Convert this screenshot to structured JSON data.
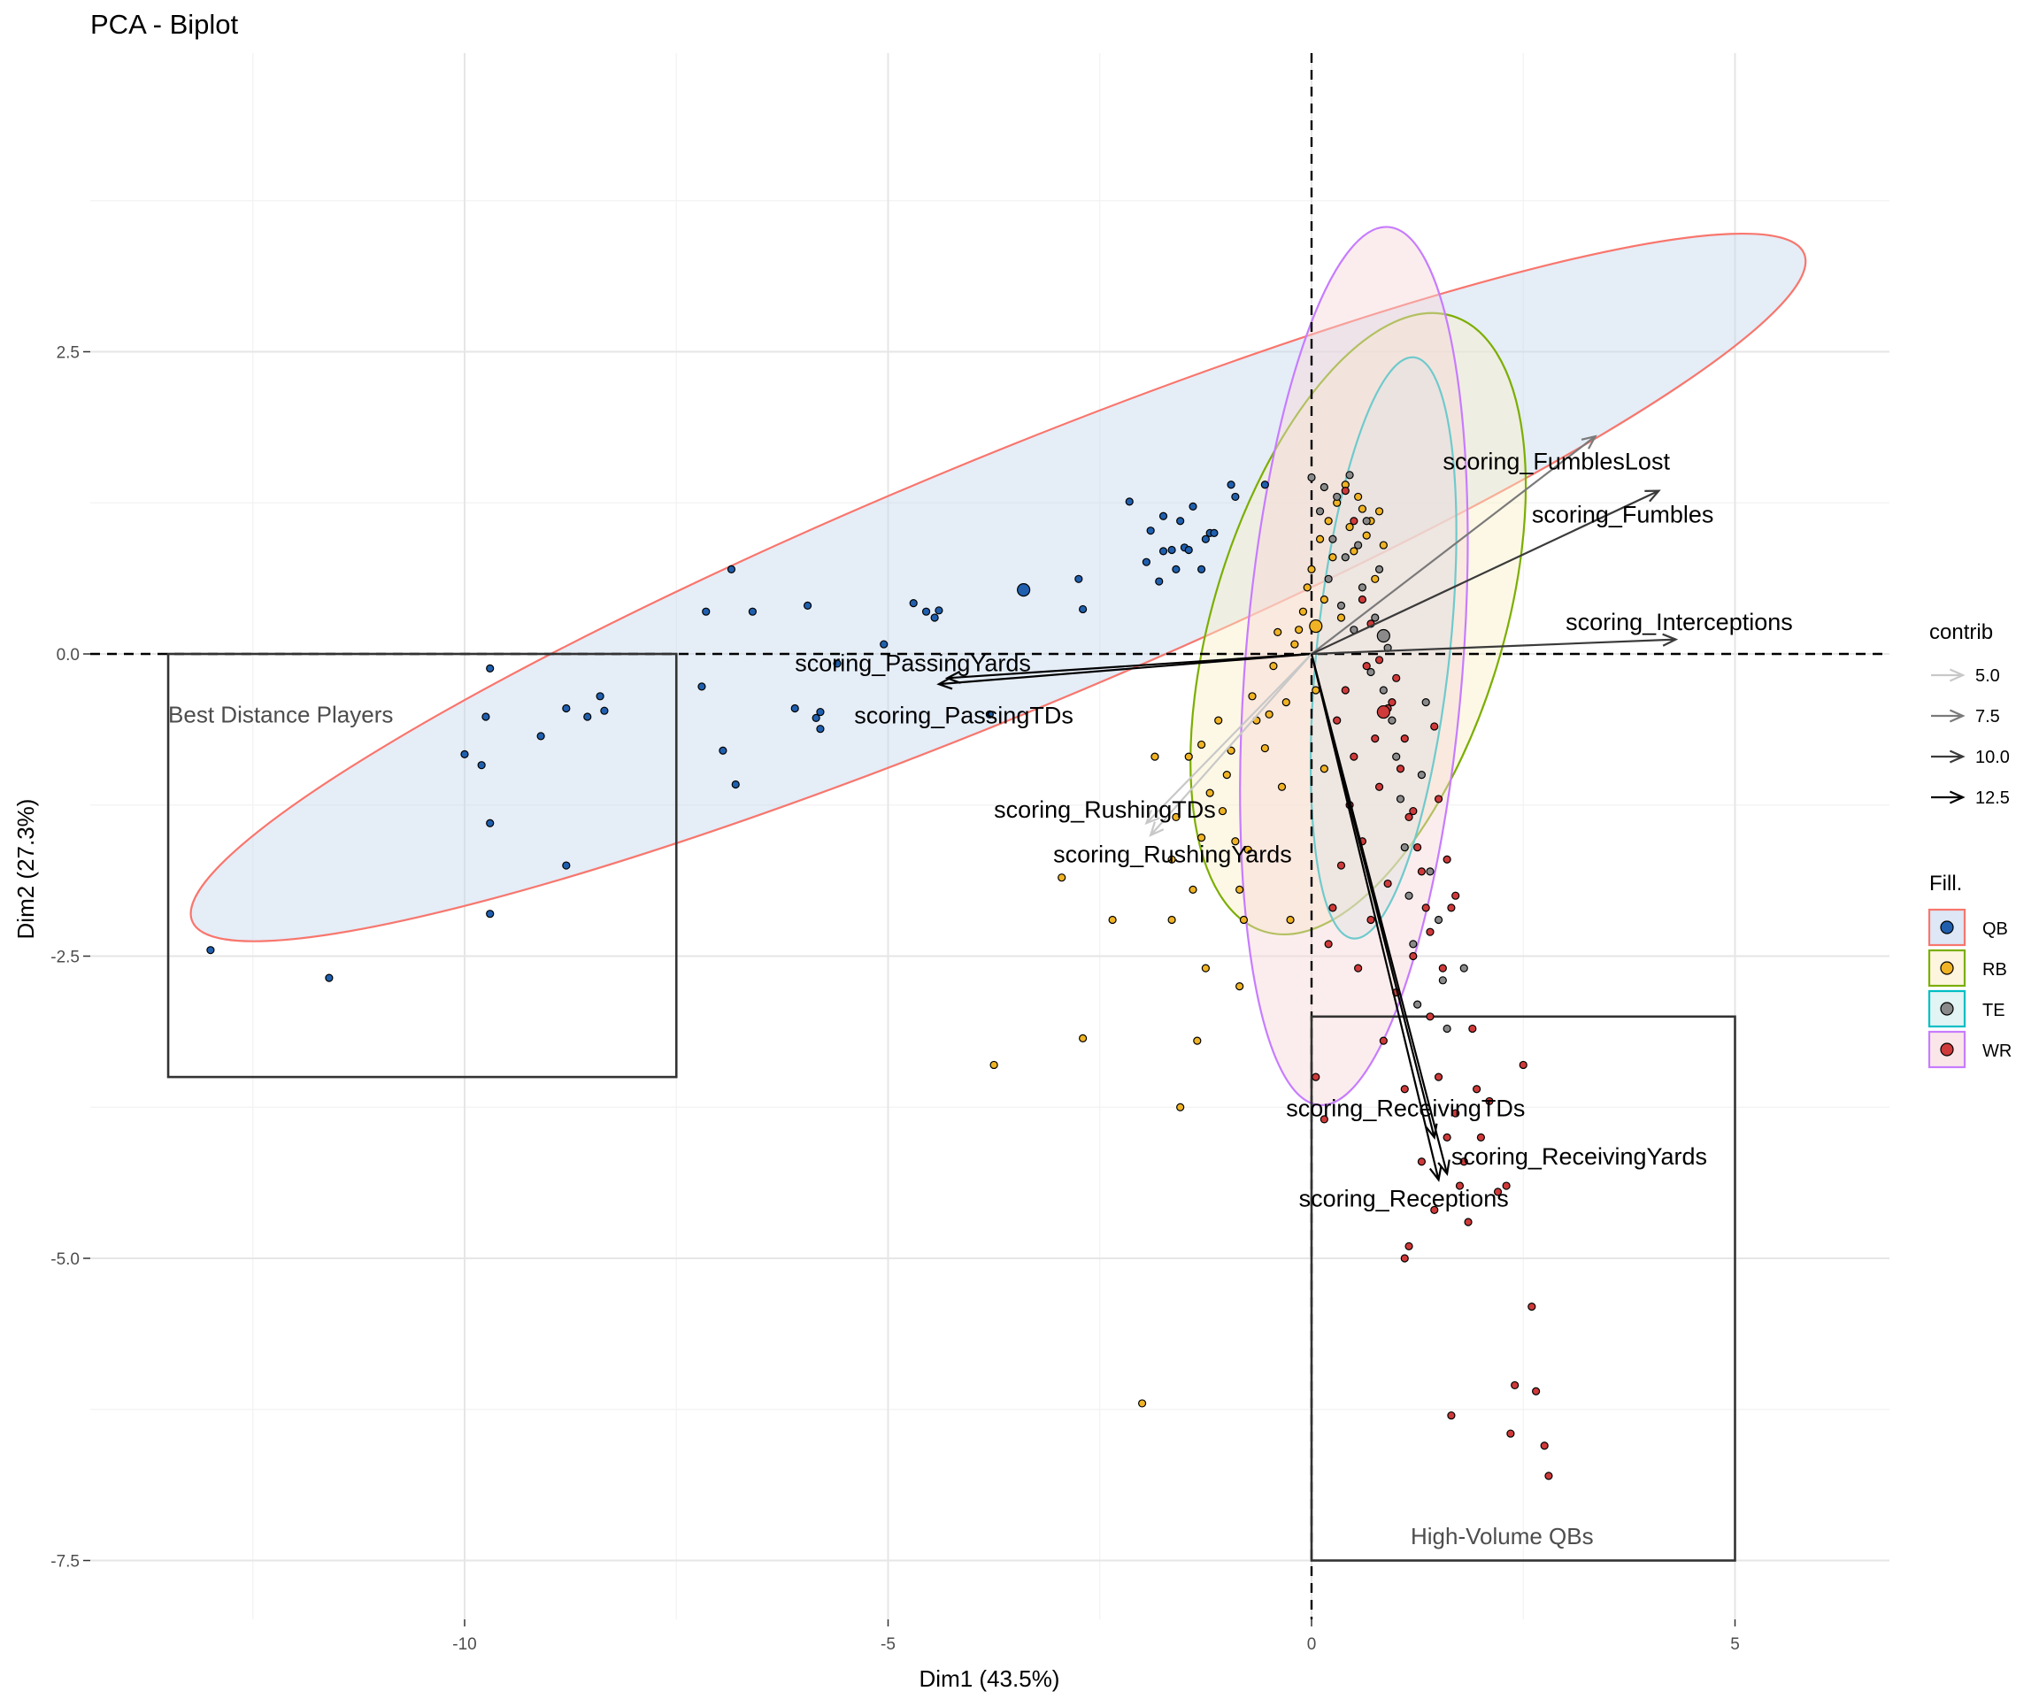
{
  "chart_data": {
    "type": "scatter",
    "title": "PCA - Biplot",
    "xlabel": "Dim1 (43.5%)",
    "ylabel": "Dim2 (27.3%)",
    "xlim": [
      -14.6,
      6.8
    ],
    "ylim": [
      -8.1,
      5.3
    ],
    "x_ticks": [
      -10,
      -5,
      0,
      5
    ],
    "x_tick_labels": [
      "-10",
      "-5",
      "0",
      "5"
    ],
    "y_ticks": [
      2.5,
      0,
      -2.5,
      -5,
      -7.5
    ],
    "y_tick_labels": [
      "2.5",
      "0.0",
      "-2.5",
      "-5.0",
      "-7.5"
    ],
    "grid": true,
    "reference_lines": {
      "x": 0,
      "y": 0,
      "style": "dashed"
    },
    "legend_position": "right",
    "contrib_legend": {
      "title": "contrib",
      "entries": [
        {
          "label": "5.0",
          "color": "#c8c8c8"
        },
        {
          "label": "7.5",
          "color": "#7a7a7a"
        },
        {
          "label": "10.0",
          "color": "#3a3a3a"
        },
        {
          "label": "12.5",
          "color": "#000000"
        }
      ]
    },
    "groups": [
      {
        "name": "QB",
        "color": "#f8766d",
        "fill": "#1f5fae",
        "ellipse_fill": "#c6d7ee"
      },
      {
        "name": "RB",
        "color": "#7cae00",
        "fill": "#f0b323",
        "ellipse_fill": "#fbefc8"
      },
      {
        "name": "TE",
        "color": "#00bfc4",
        "fill": "#8a8a8a",
        "ellipse_fill": "#cfeced"
      },
      {
        "name": "WR",
        "color": "#c77cff",
        "fill": "#cf3a3a",
        "ellipse_fill": "#f6d6d8"
      }
    ],
    "fill_legend_title": "Fill.",
    "ellipses": [
      {
        "group": "QB",
        "cx": -3.7,
        "cy": 0.55,
        "rx": 10.3,
        "ry": 1.05,
        "angle_deg": 22.5
      },
      {
        "group": "RB",
        "cx": 0.55,
        "cy": 0.25,
        "rx": 3.8,
        "ry": 1.2,
        "angle_deg": 73
      },
      {
        "group": "TE",
        "cx": 0.85,
        "cy": 0.05,
        "rx": 3.45,
        "ry": 0.55,
        "angle_deg": 84
      },
      {
        "group": "WR",
        "cx": 0.5,
        "cy": -0.1,
        "rx": 5.2,
        "ry": 0.9,
        "angle_deg": 85.5
      }
    ],
    "variables": [
      {
        "name": "scoring_FumblesLost",
        "x": 3.35,
        "y": 1.8,
        "contrib": 7.5,
        "label_x": 1.55,
        "label_y": 1.6
      },
      {
        "name": "scoring_Fumbles",
        "x": 4.1,
        "y": 1.35,
        "contrib": 10.0,
        "label_x": 2.6,
        "label_y": 1.16
      },
      {
        "name": "scoring_Interceptions",
        "x": 4.3,
        "y": 0.12,
        "contrib": 10.0,
        "label_x": 3.0,
        "label_y": 0.27
      },
      {
        "name": "scoring_PassingYards",
        "x": -4.4,
        "y": -0.25,
        "contrib": 12.5,
        "label_x": -6.1,
        "label_y": -0.07
      },
      {
        "name": "scoring_PassingTDs",
        "x": -4.3,
        "y": -0.2,
        "contrib": 12.5,
        "label_x": -5.4,
        "label_y": -0.5
      },
      {
        "name": "scoring_RushingTDs",
        "x": -1.9,
        "y": -1.5,
        "contrib": 5.0,
        "label_x": -3.75,
        "label_y": -1.28
      },
      {
        "name": "scoring_RushingYards",
        "x": -1.95,
        "y": -1.4,
        "contrib": 5.0,
        "label_x": -3.05,
        "label_y": -1.65
      },
      {
        "name": "scoring_ReceivingTDs",
        "x": 1.45,
        "y": -4.0,
        "contrib": 12.5,
        "label_x": -0.3,
        "label_y": -3.75
      },
      {
        "name": "scoring_ReceivingYards",
        "x": 1.6,
        "y": -4.3,
        "contrib": 12.5,
        "label_x": 1.65,
        "label_y": -4.15
      },
      {
        "name": "scoring_Receptions",
        "x": 1.5,
        "y": -4.35,
        "contrib": 12.5,
        "label_x": -0.15,
        "label_y": -4.5
      }
    ],
    "annotation_boxes": [
      {
        "label": "Best Distance Players",
        "x0": -13.5,
        "x1": -7.5,
        "y0": -3.5,
        "y1": 0.0,
        "label_x": -13.5,
        "label_y": -0.5
      },
      {
        "label": "High-Volume QBs",
        "x0": 0.0,
        "x1": 5.0,
        "y0": -7.5,
        "y1": -3.0,
        "label_x": 2.25,
        "label_y": -7.3
      }
    ],
    "series": [
      {
        "name": "QB",
        "points": [
          [
            -13.0,
            -2.45
          ],
          [
            -11.6,
            -2.68
          ],
          [
            -10.0,
            -0.83
          ],
          [
            -9.7,
            -0.12
          ],
          [
            -9.75,
            -0.52
          ],
          [
            -9.8,
            -0.92
          ],
          [
            -9.7,
            -1.4
          ],
          [
            -9.7,
            -2.15
          ],
          [
            -9.1,
            -0.68
          ],
          [
            -8.8,
            -0.45
          ],
          [
            -8.8,
            -1.75
          ],
          [
            -8.55,
            -0.52
          ],
          [
            -8.4,
            -0.35
          ],
          [
            -8.35,
            -0.47
          ],
          [
            -7.2,
            -0.27
          ],
          [
            -7.15,
            0.35
          ],
          [
            -6.95,
            -0.8
          ],
          [
            -6.85,
            0.7
          ],
          [
            -6.8,
            -1.08
          ],
          [
            -6.6,
            0.35
          ],
          [
            -6.1,
            -0.45
          ],
          [
            -5.95,
            0.4
          ],
          [
            -5.85,
            -0.53
          ],
          [
            -5.8,
            -0.48
          ],
          [
            -5.8,
            -0.62
          ],
          [
            -5.6,
            -0.08
          ],
          [
            -5.05,
            0.08
          ],
          [
            -4.7,
            0.42
          ],
          [
            -4.55,
            0.35
          ],
          [
            -4.45,
            0.3
          ],
          [
            -4.4,
            0.36
          ],
          [
            -3.8,
            -0.5
          ],
          [
            -2.75,
            0.62
          ],
          [
            -2.7,
            0.37
          ],
          [
            -2.15,
            1.26
          ],
          [
            -1.95,
            0.76
          ],
          [
            -1.9,
            1.02
          ],
          [
            -1.8,
            0.6
          ],
          [
            -1.75,
            1.14
          ],
          [
            -1.75,
            0.85
          ],
          [
            -1.65,
            0.86
          ],
          [
            -1.6,
            0.7
          ],
          [
            -1.55,
            1.1
          ],
          [
            -1.5,
            0.88
          ],
          [
            -1.45,
            0.86
          ],
          [
            -1.4,
            1.22
          ],
          [
            -1.3,
            0.7
          ],
          [
            -1.25,
            0.95
          ],
          [
            -1.2,
            1.0
          ],
          [
            -1.15,
            1.0
          ],
          [
            -0.95,
            1.4
          ],
          [
            -0.9,
            1.3
          ],
          [
            -0.55,
            1.4
          ]
        ]
      },
      {
        "name": "QB_centroid",
        "points": [
          [
            -3.4,
            0.53
          ]
        ]
      },
      {
        "name": "RB",
        "points": [
          [
            -3.75,
            -3.4
          ],
          [
            -2.95,
            -1.85
          ],
          [
            -2.7,
            -3.18
          ],
          [
            -2.35,
            -2.2
          ],
          [
            -2.0,
            -6.2
          ],
          [
            -1.85,
            -0.85
          ],
          [
            -1.65,
            -2.2
          ],
          [
            -1.65,
            -1.7
          ],
          [
            -1.6,
            -1.35
          ],
          [
            -1.45,
            -0.85
          ],
          [
            -1.4,
            -1.95
          ],
          [
            -1.35,
            -3.2
          ],
          [
            -1.3,
            -1.52
          ],
          [
            -1.3,
            -0.75
          ],
          [
            -1.25,
            -2.6
          ],
          [
            -1.2,
            -1.15
          ],
          [
            -1.1,
            -0.55
          ],
          [
            -1.05,
            -1.3
          ],
          [
            -1.0,
            -1.0
          ],
          [
            -0.95,
            -0.8
          ],
          [
            -0.9,
            -1.55
          ],
          [
            -0.85,
            -1.95
          ],
          [
            -0.85,
            -2.75
          ],
          [
            -0.8,
            -2.2
          ],
          [
            -0.75,
            -1.62
          ],
          [
            -0.7,
            -0.35
          ],
          [
            -0.65,
            -0.55
          ],
          [
            -0.55,
            -0.78
          ],
          [
            -0.5,
            -0.5
          ],
          [
            -0.45,
            -0.1
          ],
          [
            -0.4,
            0.18
          ],
          [
            -0.3,
            -0.4
          ],
          [
            -0.25,
            -2.2
          ],
          [
            -0.2,
            0.08
          ],
          [
            -0.15,
            0.2
          ],
          [
            -0.1,
            0.35
          ],
          [
            -0.05,
            0.55
          ],
          [
            0.0,
            0.7
          ],
          [
            0.05,
            -0.3
          ],
          [
            0.1,
            0.95
          ],
          [
            0.15,
            0.45
          ],
          [
            0.2,
            1.1
          ],
          [
            0.25,
            0.8
          ],
          [
            0.3,
            1.25
          ],
          [
            0.35,
            0.3
          ],
          [
            0.4,
            1.4
          ],
          [
            0.45,
            1.05
          ],
          [
            0.5,
            0.85
          ],
          [
            0.55,
            1.3
          ],
          [
            0.6,
            1.2
          ],
          [
            0.65,
            0.98
          ],
          [
            0.7,
            1.1
          ],
          [
            0.75,
            0.62
          ],
          [
            0.8,
            1.18
          ],
          [
            0.85,
            0.9
          ],
          [
            -1.55,
            -3.75
          ],
          [
            -0.35,
            -1.1
          ],
          [
            0.15,
            -0.95
          ]
        ]
      },
      {
        "name": "RB_centroid",
        "points": [
          [
            0.05,
            0.23
          ]
        ]
      },
      {
        "name": "TE",
        "points": [
          [
            0.0,
            1.46
          ],
          [
            0.1,
            1.18
          ],
          [
            0.15,
            1.38
          ],
          [
            0.2,
            0.62
          ],
          [
            0.25,
            0.95
          ],
          [
            0.3,
            1.3
          ],
          [
            0.35,
            0.4
          ],
          [
            0.4,
            0.8
          ],
          [
            0.45,
            1.48
          ],
          [
            0.5,
            0.2
          ],
          [
            0.55,
            0.9
          ],
          [
            0.6,
            0.55
          ],
          [
            0.65,
            1.1
          ],
          [
            0.7,
            -0.15
          ],
          [
            0.75,
            0.3
          ],
          [
            0.8,
            0.7
          ],
          [
            0.85,
            -0.3
          ],
          [
            0.9,
            0.05
          ],
          [
            0.95,
            -0.55
          ],
          [
            1.0,
            -0.85
          ],
          [
            1.05,
            -1.2
          ],
          [
            1.1,
            -1.6
          ],
          [
            1.15,
            -2.0
          ],
          [
            1.2,
            -2.4
          ],
          [
            1.25,
            -2.9
          ],
          [
            1.3,
            -1.0
          ],
          [
            1.35,
            -0.4
          ],
          [
            1.4,
            -1.8
          ],
          [
            1.5,
            -2.2
          ],
          [
            1.55,
            -2.7
          ],
          [
            1.6,
            -3.1
          ],
          [
            1.8,
            -2.6
          ]
        ]
      },
      {
        "name": "TE_centroid",
        "points": [
          [
            0.85,
            0.15
          ]
        ]
      },
      {
        "name": "WR",
        "points": [
          [
            0.05,
            -3.5
          ],
          [
            0.15,
            -3.85
          ],
          [
            0.2,
            -2.4
          ],
          [
            0.25,
            -2.1
          ],
          [
            0.3,
            -0.55
          ],
          [
            0.35,
            -1.75
          ],
          [
            0.4,
            -0.3
          ],
          [
            0.45,
            -1.25
          ],
          [
            0.5,
            -0.85
          ],
          [
            0.55,
            -2.6
          ],
          [
            0.6,
            -1.55
          ],
          [
            0.65,
            -0.1
          ],
          [
            0.7,
            -2.2
          ],
          [
            0.75,
            -0.7
          ],
          [
            0.8,
            -1.1
          ],
          [
            0.85,
            -3.2
          ],
          [
            0.9,
            -1.9
          ],
          [
            0.95,
            -0.4
          ],
          [
            1.0,
            -2.8
          ],
          [
            1.05,
            -0.95
          ],
          [
            1.1,
            -3.6
          ],
          [
            1.15,
            -1.35
          ],
          [
            1.2,
            -2.5
          ],
          [
            1.25,
            -1.6
          ],
          [
            1.3,
            -4.2
          ],
          [
            1.35,
            -2.1
          ],
          [
            1.4,
            -3.0
          ],
          [
            1.45,
            -4.6
          ],
          [
            1.5,
            -3.5
          ],
          [
            1.55,
            -2.6
          ],
          [
            1.6,
            -4.0
          ],
          [
            1.65,
            -6.3
          ],
          [
            1.7,
            -3.8
          ],
          [
            1.75,
            -4.4
          ],
          [
            1.8,
            -4.2
          ],
          [
            1.85,
            -4.7
          ],
          [
            1.9,
            -3.1
          ],
          [
            1.95,
            -3.6
          ],
          [
            2.0,
            -4.0
          ],
          [
            2.1,
            -3.7
          ],
          [
            2.2,
            -4.45
          ],
          [
            2.3,
            -4.4
          ],
          [
            2.4,
            -6.05
          ],
          [
            2.5,
            -3.4
          ],
          [
            2.6,
            -5.4
          ],
          [
            2.65,
            -6.1
          ],
          [
            2.75,
            -6.55
          ],
          [
            2.8,
            -6.8
          ],
          [
            2.35,
            -6.45
          ],
          [
            1.1,
            -5.0
          ],
          [
            1.15,
            -4.9
          ],
          [
            0.4,
            1.35
          ],
          [
            0.5,
            1.1
          ],
          [
            0.6,
            0.45
          ],
          [
            0.7,
            0.25
          ],
          [
            0.8,
            -0.05
          ],
          [
            0.9,
            -0.45
          ],
          [
            1.0,
            -0.2
          ],
          [
            1.1,
            -0.7
          ],
          [
            1.2,
            -1.3
          ],
          [
            1.3,
            -1.8
          ],
          [
            1.4,
            -2.3
          ],
          [
            1.5,
            -1.2
          ],
          [
            1.6,
            -1.7
          ],
          [
            1.65,
            -2.1
          ],
          [
            1.7,
            -2.0
          ],
          [
            1.45,
            -0.6
          ]
        ]
      },
      {
        "name": "WR_centroid",
        "points": [
          [
            0.85,
            -0.48
          ]
        ]
      }
    ]
  }
}
